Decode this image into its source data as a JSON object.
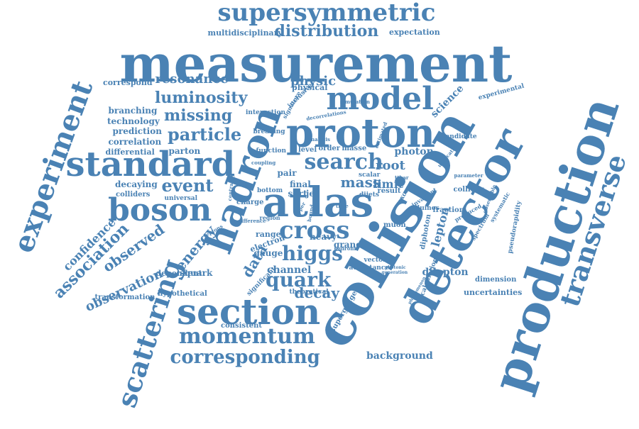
{
  "color": "#4a82b4",
  "words": [
    {
      "text": "measurement"
    },
    {
      "text": "collision"
    },
    {
      "text": "production"
    },
    {
      "text": "detector"
    },
    {
      "text": "hadron"
    },
    {
      "text": "proton"
    },
    {
      "text": "atlas"
    },
    {
      "text": "standard"
    },
    {
      "text": "boson"
    },
    {
      "text": "section"
    },
    {
      "text": "model"
    },
    {
      "text": "experiment"
    },
    {
      "text": "transverse"
    },
    {
      "text": "scattering"
    },
    {
      "text": "supersymmetric"
    },
    {
      "text": "search"
    },
    {
      "text": "cross"
    },
    {
      "text": "momentum"
    },
    {
      "text": "higgs"
    },
    {
      "text": "quark"
    },
    {
      "text": "corresponding"
    },
    {
      "text": "distribution"
    },
    {
      "text": "luminosity"
    },
    {
      "text": "missing"
    },
    {
      "text": "particle"
    },
    {
      "text": "resonance"
    },
    {
      "text": "physic"
    },
    {
      "text": "event"
    },
    {
      "text": "association"
    },
    {
      "text": "observed"
    },
    {
      "text": "observation"
    },
    {
      "text": "confidence"
    },
    {
      "text": "decay"
    },
    {
      "text": "channel"
    },
    {
      "text": "data"
    },
    {
      "text": "energy"
    },
    {
      "text": "mass"
    },
    {
      "text": "limit"
    },
    {
      "text": "root"
    },
    {
      "text": "photon"
    },
    {
      "text": "science"
    },
    {
      "text": "lepton"
    },
    {
      "text": "dilepton"
    },
    {
      "text": "background"
    },
    {
      "text": "multidisciplinary"
    },
    {
      "text": "expectation"
    },
    {
      "text": "correspond"
    },
    {
      "text": "branching"
    },
    {
      "text": "technology"
    },
    {
      "text": "prediction"
    },
    {
      "text": "correlation"
    },
    {
      "text": "differential"
    },
    {
      "text": "parton"
    },
    {
      "text": "decaying"
    },
    {
      "text": "colliders"
    },
    {
      "text": "universal"
    },
    {
      "text": "charge"
    },
    {
      "text": "squark"
    },
    {
      "text": "dependent"
    },
    {
      "text": "transformation"
    },
    {
      "text": "hypothetical"
    },
    {
      "text": "consistent"
    },
    {
      "text": "theoretical"
    },
    {
      "text": "significant"
    },
    {
      "text": "gauge"
    },
    {
      "text": "electron"
    },
    {
      "text": "bottom"
    },
    {
      "text": "range"
    },
    {
      "text": "pair"
    },
    {
      "text": "final"
    },
    {
      "text": "sqrt"
    },
    {
      "text": "jet"
    },
    {
      "text": "heavy"
    },
    {
      "text": "grand"
    },
    {
      "text": "order"
    },
    {
      "text": "masse"
    },
    {
      "text": "level"
    },
    {
      "text": "function"
    },
    {
      "text": "result"
    },
    {
      "text": "scalar"
    },
    {
      "text": "collider"
    },
    {
      "text": "fraction"
    },
    {
      "text": "diphoton"
    },
    {
      "text": "calculation"
    },
    {
      "text": "uncertainties"
    },
    {
      "text": "dimension"
    },
    {
      "text": "experimental"
    },
    {
      "text": "candidate"
    },
    {
      "text": "physical"
    },
    {
      "text": "interaction"
    },
    {
      "text": "breaking"
    },
    {
      "text": "muon"
    },
    {
      "text": "excess"
    },
    {
      "text": "gluinos"
    },
    {
      "text": "acceptance"
    },
    {
      "text": "supergauge"
    },
    {
      "text": "vector"
    },
    {
      "text": "dijets"
    },
    {
      "text": "pseudorapidity"
    },
    {
      "text": "inclusive"
    },
    {
      "text": "signature"
    },
    {
      "text": "spectrum"
    },
    {
      "text": "produced"
    },
    {
      "text": "invariant"
    },
    {
      "text": "systematic"
    },
    {
      "text": "parameter"
    },
    {
      "text": "unification"
    },
    {
      "text": "analysis"
    },
    {
      "text": "coupling"
    },
    {
      "text": "centrality"
    },
    {
      "text": "difference"
    },
    {
      "text": "region"
    },
    {
      "text": "leptons"
    },
    {
      "text": "simulation"
    },
    {
      "text": "hadronic"
    },
    {
      "text": "upper"
    },
    {
      "text": "bound"
    },
    {
      "text": "decorrelations"
    },
    {
      "text": "time"
    },
    {
      "text": "estimated"
    },
    {
      "text": "generation"
    },
    {
      "text": "phenomenon"
    },
    {
      "text": "photonic"
    },
    {
      "text": "observable"
    },
    {
      "text": "ttbar"
    }
  ]
}
